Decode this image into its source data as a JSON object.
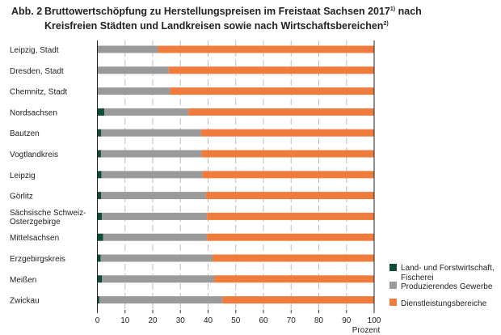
{
  "chart_data": {
    "type": "bar",
    "orientation": "horizontal",
    "stacked": true,
    "title_prefix": "Abb. 2",
    "title": "Bruttowertschöpfung zu Herstellungspreisen im Freistaat Sachsen 2017",
    "title_footnote1": "1)",
    "title_cont": "nach",
    "title_line2": "Kreisfreien Städten und Landkreisen sowie nach Wirtschaftsbereichen",
    "title_footnote2": "2)",
    "xlabel": "Prozent",
    "xlim": [
      0,
      100
    ],
    "xticks": [
      "0",
      "10",
      "20",
      "30",
      "40",
      "50",
      "60",
      "70",
      "80",
      "90",
      "100"
    ],
    "grid": true,
    "legend_position": "bottom-right",
    "categories": [
      "Leipzig, Stadt",
      "Dresden, Stadt",
      "Chemnitz, Stadt",
      "Nordsachsen",
      "Bautzen",
      "Vogtlandkreis",
      "Leipzig",
      "Görlitz",
      "Sächsische Schweiz-\nOsterzgebirge",
      "Mittelsachsen",
      "Erzgebirgskreis",
      "Meißen",
      "Zwickau"
    ],
    "series": [
      {
        "name": "Land- und Forstwirtschaft, Fischerei",
        "color": "#0f4d3a",
        "values": [
          0.1,
          0.2,
          0.2,
          2.5,
          1.4,
          1.3,
          1.5,
          1.4,
          1.6,
          2.1,
          1.2,
          1.7,
          0.7
        ]
      },
      {
        "name": "Produzierendes Gewerbe",
        "color": "#9a9a9a",
        "values": [
          21.8,
          25.6,
          26.1,
          30.4,
          36.1,
          36.3,
          36.5,
          37.8,
          38.0,
          37.5,
          40.4,
          40.5,
          44.5
        ]
      },
      {
        "name": "Dienstleistungsbereiche",
        "color": "#ef7c3c",
        "values": [
          78.1,
          74.2,
          73.7,
          67.1,
          62.5,
          62.4,
          62.0,
          60.8,
          60.4,
          60.4,
          58.4,
          57.8,
          54.8
        ]
      }
    ],
    "legend": [
      "Land- und Forstwirtschaft,",
      "Fischerei",
      "Produzierendes Gewerbe",
      "Dienstleistungsbereiche"
    ]
  }
}
